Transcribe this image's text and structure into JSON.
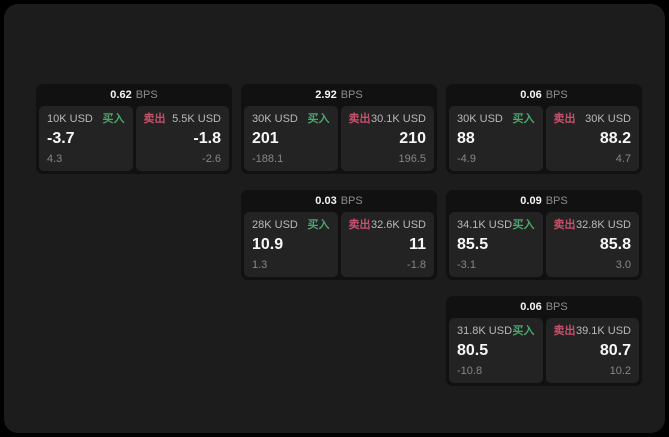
{
  "labels": {
    "bps_unit": "BPS",
    "buy": "买入",
    "sell": "卖出"
  },
  "colors": {
    "buy_green": "#4aa56e",
    "sell_red": "#c7506a",
    "panel_background": "#1c1c1c",
    "card_background": "#111111",
    "tile_background": "#232323"
  },
  "cards": [
    {
      "bps": "0.62",
      "buy": {
        "amount": "10K USD",
        "price": "-3.7",
        "delta": "4.3"
      },
      "sell": {
        "amount": "5.5K USD",
        "price": "-1.8",
        "delta": "-2.6"
      }
    },
    {
      "bps": "2.92",
      "buy": {
        "amount": "30K USD",
        "price": "201",
        "delta": "-188.1"
      },
      "sell": {
        "amount": "30.1K USD",
        "price": "210",
        "delta": "196.5"
      }
    },
    {
      "bps": "0.06",
      "buy": {
        "amount": "30K USD",
        "price": "88",
        "delta": "-4.9"
      },
      "sell": {
        "amount": "30K USD",
        "price": "88.2",
        "delta": "4.7"
      }
    },
    {
      "bps": "0.03",
      "buy": {
        "amount": "28K USD",
        "price": "10.9",
        "delta": "1.3"
      },
      "sell": {
        "amount": "32.6K USD",
        "price": "11",
        "delta": "-1.8"
      }
    },
    {
      "bps": "0.09",
      "buy": {
        "amount": "34.1K USD",
        "price": "85.5",
        "delta": "-3.1"
      },
      "sell": {
        "amount": "32.8K USD",
        "price": "85.8",
        "delta": "3.0"
      }
    },
    {
      "bps": "0.06",
      "buy": {
        "amount": "31.8K USD",
        "price": "80.5",
        "delta": "-10.8"
      },
      "sell": {
        "amount": "39.1K USD",
        "price": "80.7",
        "delta": "10.2"
      }
    }
  ]
}
